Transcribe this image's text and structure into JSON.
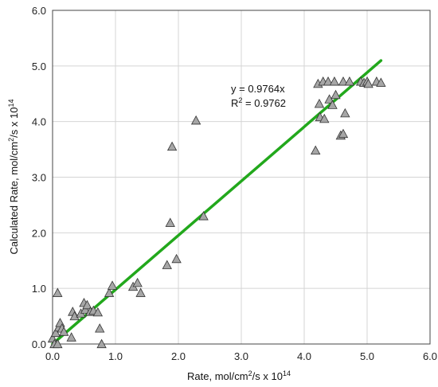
{
  "chart_data": {
    "type": "scatter",
    "xlabel_main": "Rate, mol/cm",
    "xlabel_sup1": "2",
    "xlabel_mid": "/s x 10",
    "xlabel_sup2": "14",
    "ylabel_main": "Calculated Rate, mol/cm",
    "ylabel_sup1": "2",
    "ylabel_mid": "/s x 10",
    "ylabel_sup2": "14",
    "xlim": [
      0,
      6
    ],
    "ylim": [
      0,
      6
    ],
    "xticks": [
      "0.0",
      "1.0",
      "2.0",
      "3.0",
      "4.0",
      "5.0",
      "6.0"
    ],
    "yticks": [
      "0.0",
      "1.0",
      "2.0",
      "3.0",
      "4.0",
      "5.0",
      "6.0"
    ],
    "grid": true,
    "annotation_eq": "y = 0.9764x",
    "annotation_r2_prefix": "R",
    "annotation_r2_sup": "2",
    "annotation_r2_value": " = 0.9762",
    "marker_color": "#a6a6a6",
    "line_color": "#22a81c",
    "fit": {
      "slope": 0.9764,
      "x_range": [
        0.0,
        5.22
      ]
    },
    "points": [
      [
        0.0,
        0.1
      ],
      [
        0.03,
        0.0
      ],
      [
        0.05,
        0.2
      ],
      [
        0.08,
        0.92
      ],
      [
        0.08,
        0.0
      ],
      [
        0.1,
        0.3
      ],
      [
        0.12,
        0.38
      ],
      [
        0.15,
        0.28
      ],
      [
        0.18,
        0.22
      ],
      [
        0.3,
        0.12
      ],
      [
        0.32,
        0.58
      ],
      [
        0.35,
        0.5
      ],
      [
        0.45,
        0.55
      ],
      [
        0.5,
        0.74
      ],
      [
        0.52,
        0.62
      ],
      [
        0.55,
        0.7
      ],
      [
        0.6,
        0.58
      ],
      [
        0.65,
        0.6
      ],
      [
        0.72,
        0.57
      ],
      [
        0.75,
        0.28
      ],
      [
        0.78,
        0.0
      ],
      [
        0.9,
        0.92
      ],
      [
        0.95,
        1.05
      ],
      [
        1.28,
        1.03
      ],
      [
        1.35,
        1.1
      ],
      [
        1.4,
        0.92
      ],
      [
        1.82,
        1.42
      ],
      [
        1.87,
        2.18
      ],
      [
        1.9,
        3.55
      ],
      [
        1.97,
        1.53
      ],
      [
        2.28,
        4.02
      ],
      [
        2.4,
        2.3
      ],
      [
        4.18,
        3.48
      ],
      [
        4.22,
        4.68
      ],
      [
        4.24,
        4.32
      ],
      [
        4.25,
        4.08
      ],
      [
        4.3,
        4.72
      ],
      [
        4.32,
        4.05
      ],
      [
        4.38,
        4.72
      ],
      [
        4.4,
        4.4
      ],
      [
        4.45,
        4.3
      ],
      [
        4.48,
        4.72
      ],
      [
        4.5,
        4.48
      ],
      [
        4.58,
        3.75
      ],
      [
        4.62,
        4.72
      ],
      [
        4.62,
        3.78
      ],
      [
        4.65,
        4.15
      ],
      [
        4.72,
        4.72
      ],
      [
        4.9,
        4.72
      ],
      [
        4.95,
        4.7
      ],
      [
        5.0,
        4.72
      ],
      [
        5.02,
        4.68
      ],
      [
        5.15,
        4.72
      ],
      [
        5.22,
        4.7
      ]
    ]
  }
}
